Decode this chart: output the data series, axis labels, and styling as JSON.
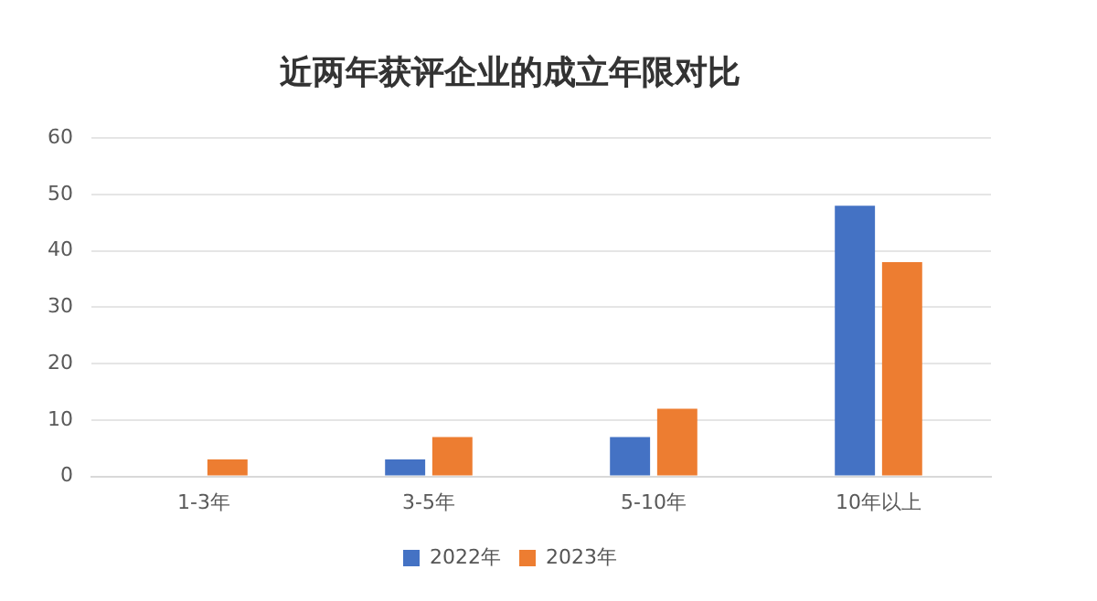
{
  "chart_data": {
    "type": "bar",
    "title": "近两年获评企业的成立年限对比",
    "categories": [
      "1-3年",
      "3-5年",
      "5-10年",
      "10年以上"
    ],
    "series": [
      {
        "name": "2022年",
        "color": "#4472c4",
        "values": [
          0,
          3,
          7,
          48
        ]
      },
      {
        "name": "2023年",
        "color": "#ed7d31",
        "values": [
          3,
          7,
          12,
          38
        ]
      }
    ],
    "ylim": [
      0,
      60
    ],
    "yticks": [
      0,
      10,
      20,
      30,
      40,
      50,
      60
    ],
    "grid": "y",
    "legend": "bottom"
  }
}
